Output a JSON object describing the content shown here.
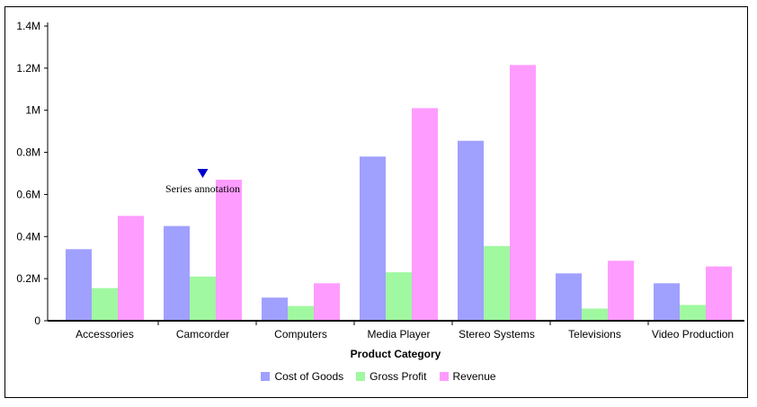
{
  "chart_data": {
    "type": "bar",
    "xlabel": "Product Category",
    "ylabel": "",
    "ylim": [
      0,
      1400000
    ],
    "yticks": [
      {
        "value": 0,
        "label": "0"
      },
      {
        "value": 200000,
        "label": "0.2M"
      },
      {
        "value": 400000,
        "label": "0.4M"
      },
      {
        "value": 600000,
        "label": "0.6M"
      },
      {
        "value": 800000,
        "label": "0.8M"
      },
      {
        "value": 1000000,
        "label": "1M"
      },
      {
        "value": 1200000,
        "label": "1.2M"
      },
      {
        "value": 1400000,
        "label": "1.4M"
      }
    ],
    "categories": [
      "Accessories",
      "Camcorder",
      "Computers",
      "Media Player",
      "Stereo Systems",
      "Televisions",
      "Video Production"
    ],
    "series": [
      {
        "name": "Cost of Goods",
        "color": "#a0a0ff",
        "values": [
          340000,
          450000,
          110000,
          780000,
          855000,
          225000,
          178000
        ]
      },
      {
        "name": "Gross Profit",
        "color": "#a0f8a0",
        "values": [
          155000,
          210000,
          70000,
          230000,
          355000,
          58000,
          75000
        ]
      },
      {
        "name": "Revenue",
        "color": "#ff9cff",
        "values": [
          498000,
          670000,
          178000,
          1010000,
          1215000,
          285000,
          258000
        ]
      }
    ],
    "annotations": [
      {
        "text": "Series annotation",
        "category": "Camcorder",
        "marker_color": "#0000cc"
      }
    ],
    "grid": false,
    "legend_position": "bottom"
  }
}
